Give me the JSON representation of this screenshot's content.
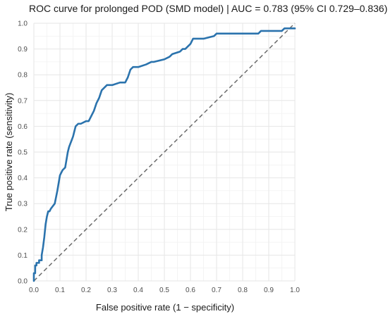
{
  "chart_data": {
    "type": "line",
    "title": "ROC curve for prolonged POD (SMD model)  |  AUC = 0.783 (95% CI 0.729–0.836)",
    "xlabel": "False positive rate (1 − specificity)",
    "ylabel": "True positive rate (sensitivity)",
    "xlim": [
      0,
      1
    ],
    "ylim": [
      0,
      1
    ],
    "x_ticks": [
      "0.0",
      "0.1",
      "0.2",
      "0.3",
      "0.4",
      "0.5",
      "0.6",
      "0.7",
      "0.8",
      "0.9",
      "1.0"
    ],
    "y_ticks": [
      "0.0",
      "0.1",
      "0.2",
      "0.3",
      "0.4",
      "0.5",
      "0.6",
      "0.7",
      "0.8",
      "0.9",
      "1.0"
    ],
    "grid": true,
    "legend": "none",
    "series": [
      {
        "color": "#2b73ad",
        "x": [
          0.0,
          0.0,
          0.005,
          0.005,
          0.01,
          0.01,
          0.02,
          0.02,
          0.03,
          0.03,
          0.035,
          0.04,
          0.045,
          0.05,
          0.055,
          0.06,
          0.065,
          0.08,
          0.09,
          0.1,
          0.11,
          0.12,
          0.13,
          0.135,
          0.15,
          0.16,
          0.17,
          0.18,
          0.2,
          0.21,
          0.22,
          0.23,
          0.24,
          0.25,
          0.26,
          0.28,
          0.3,
          0.33,
          0.35,
          0.36,
          0.37,
          0.38,
          0.39,
          0.4,
          0.43,
          0.45,
          0.46,
          0.5,
          0.52,
          0.53,
          0.56,
          0.57,
          0.58,
          0.6,
          0.61,
          0.65,
          0.69,
          0.7,
          0.75,
          0.8,
          0.86,
          0.87,
          0.9,
          0.95,
          0.96,
          1.0
        ],
        "y": [
          0.0,
          0.03,
          0.03,
          0.06,
          0.06,
          0.07,
          0.07,
          0.08,
          0.08,
          0.1,
          0.13,
          0.17,
          0.22,
          0.25,
          0.27,
          0.27,
          0.28,
          0.3,
          0.35,
          0.41,
          0.43,
          0.44,
          0.5,
          0.52,
          0.56,
          0.6,
          0.61,
          0.61,
          0.62,
          0.62,
          0.64,
          0.66,
          0.69,
          0.71,
          0.74,
          0.76,
          0.76,
          0.77,
          0.77,
          0.79,
          0.82,
          0.83,
          0.83,
          0.83,
          0.84,
          0.85,
          0.85,
          0.86,
          0.87,
          0.88,
          0.89,
          0.9,
          0.9,
          0.92,
          0.94,
          0.94,
          0.95,
          0.96,
          0.96,
          0.96,
          0.96,
          0.97,
          0.97,
          0.97,
          0.98,
          0.98
        ]
      }
    ],
    "reference_line": {
      "x": [
        0,
        1
      ],
      "y": [
        0,
        1
      ],
      "color": "#6b6b6b",
      "style": "dashed"
    }
  }
}
